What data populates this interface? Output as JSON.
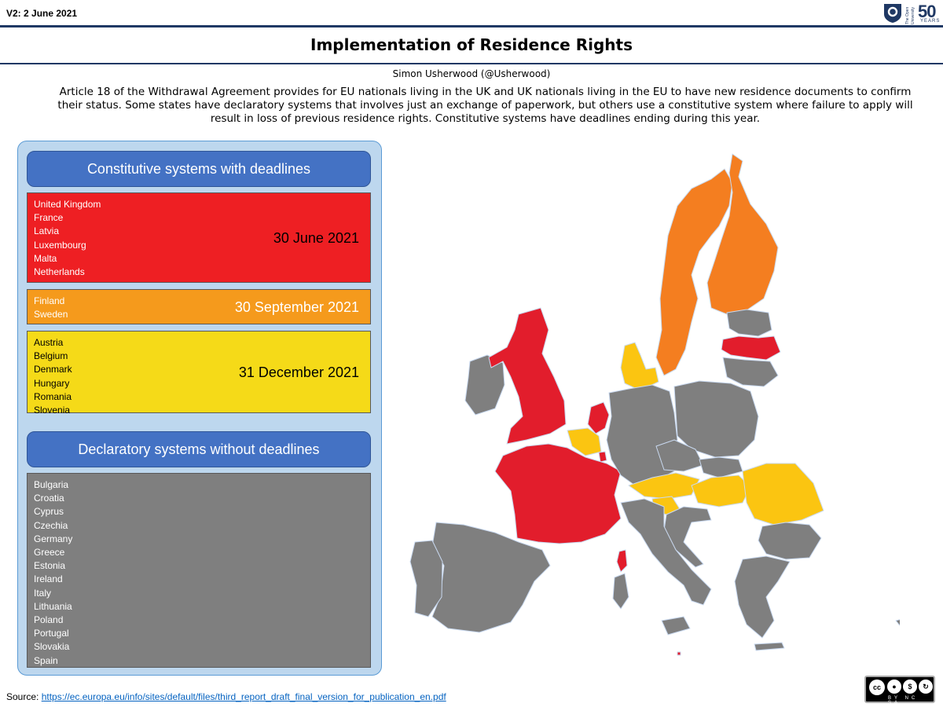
{
  "header": {
    "version": "V2: 2 June 2021",
    "logo": {
      "icon": "open-university-shield-icon",
      "text": "The Open University",
      "anniversary_number": "50",
      "anniversary_label": "YEARS"
    }
  },
  "title": "Implementation of Residence Rights",
  "author": "Simon Usherwood (@Usherwood)",
  "intro": "Article 18 of the Withdrawal Agreement provides for EU nationals living in the UK and UK nationals living in the EU to have new residence documents to confirm their status. Some states have declaratory systems that involves just an exchange of paperwork, but others use a constitutive system where failure to apply will result in loss of previous residence rights. Constitutive systems have deadlines ending during this year.",
  "constitutive": {
    "heading": "Constitutive systems with deadlines",
    "groups": [
      {
        "deadline": "30 June 2021",
        "color": "#ee1f23",
        "countries": [
          "United Kingdom",
          "France",
          "Latvia",
          "Luxembourg",
          "Malta",
          "Netherlands"
        ]
      },
      {
        "deadline": "30 September 2021",
        "color": "#f59a1c",
        "countries": [
          "Finland",
          "Sweden"
        ]
      },
      {
        "deadline": "31 December 2021",
        "color": "#f5da18",
        "countries": [
          "Austria",
          "Belgium",
          "Denmark",
          "Hungary",
          "Romania",
          "Slovenia"
        ]
      }
    ]
  },
  "declaratory": {
    "heading": "Declaratory systems without deadlines",
    "color": "#7f7f7f",
    "countries": [
      "Bulgaria",
      "Croatia",
      "Cyprus",
      "Czechia",
      "Germany",
      "Greece",
      "Estonia",
      "Ireland",
      "Italy",
      "Lithuania",
      "Poland",
      "Portugal",
      "Slovakia",
      "Spain"
    ]
  },
  "map_colors": {
    "june": "#e21d2c",
    "september": "#f47e20",
    "december": "#fbc511",
    "declaratory": "#7f7f7f",
    "border": "#c9d9f0"
  },
  "footer": {
    "source_label": "Source:",
    "source_url": "https://ec.europa.eu/info/sites/default/files/third_report_draft_final_version_for_publication_en.pdf",
    "license": {
      "icon": "cc-by-nc-sa-icon",
      "labels": "BY NC SA"
    }
  }
}
